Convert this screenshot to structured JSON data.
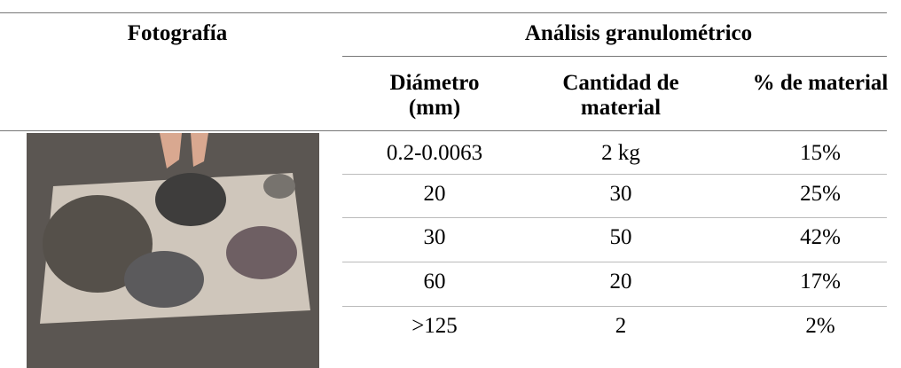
{
  "table": {
    "header": {
      "photo": "Fotografía",
      "group": "Análisis granulométrico",
      "columns": [
        "Diámetro (mm)",
        "Cantidad de material",
        "% de material"
      ]
    },
    "rows": [
      [
        "0.2-0.0063",
        "2 kg",
        "15%"
      ],
      [
        "20",
        "30",
        "25%"
      ],
      [
        "30",
        "50",
        "42%"
      ],
      [
        "60",
        "20",
        "17%"
      ],
      [
        ">125",
        "2",
        "2%"
      ]
    ]
  }
}
